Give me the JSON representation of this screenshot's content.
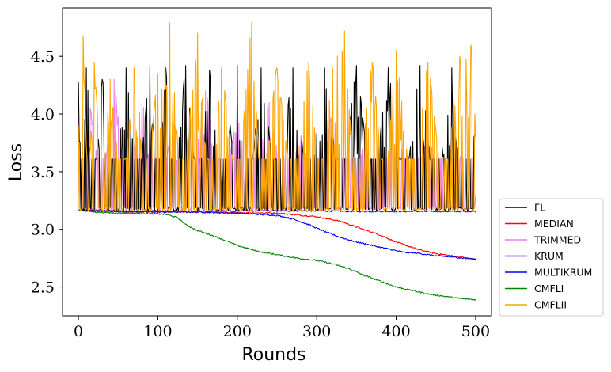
{
  "chart_data": {
    "type": "line",
    "title": "",
    "xlabel": "Rounds",
    "ylabel": "Loss",
    "xlim": [
      -20,
      520
    ],
    "ylim": [
      2.25,
      4.92
    ],
    "xticks": [
      0,
      100,
      200,
      300,
      400,
      500
    ],
    "yticks": [
      2.5,
      3.0,
      3.5,
      4.0,
      4.5
    ],
    "ytick_labels": [
      "2.5",
      "3.0",
      "3.5",
      "4.0",
      "4.5"
    ],
    "legend_position": "lower-right-outside",
    "series": [
      {
        "name": "FL",
        "color": "#000000",
        "style": "oscillating",
        "x": [
          0,
          5,
          10,
          20,
          30,
          45,
          60,
          75,
          90,
          100,
          110,
          120,
          135,
          150,
          165,
          180,
          200,
          215,
          230,
          250,
          270,
          290,
          310,
          330,
          350,
          370,
          390,
          410,
          430,
          450,
          470,
          490,
          500
        ],
        "y": [
          4.28,
          3.16,
          4.4,
          3.16,
          4.3,
          3.16,
          4.4,
          3.16,
          4.42,
          3.16,
          4.4,
          3.16,
          4.42,
          3.16,
          4.38,
          3.16,
          4.42,
          3.16,
          4.4,
          3.16,
          4.4,
          3.16,
          4.4,
          3.16,
          4.42,
          3.16,
          4.4,
          3.16,
          4.42,
          3.16,
          4.4,
          3.16,
          3.9
        ]
      },
      {
        "name": "MEDIAN",
        "color": "#ff0000",
        "style": "smooth",
        "x": [
          0,
          10,
          50,
          100,
          150,
          200,
          250,
          300,
          330,
          350,
          380,
          400,
          430,
          450,
          480,
          500
        ],
        "y": [
          3.17,
          3.16,
          3.155,
          3.15,
          3.15,
          3.145,
          3.14,
          3.11,
          3.07,
          3.02,
          2.95,
          2.89,
          2.82,
          2.79,
          2.76,
          2.74
        ]
      },
      {
        "name": "TRIMMED",
        "color": "#ee82ee",
        "style": "oscillating",
        "x": [
          0,
          5,
          15,
          30,
          45,
          60,
          80,
          100,
          120,
          140,
          160,
          180,
          200,
          220,
          240,
          260,
          280,
          300,
          320,
          340,
          360,
          380,
          400,
          420,
          440,
          460,
          480,
          500
        ],
        "y": [
          4.2,
          3.2,
          4.05,
          3.17,
          4.3,
          3.17,
          4.1,
          3.17,
          3.9,
          3.17,
          4.2,
          3.17,
          3.95,
          3.17,
          4.1,
          3.17,
          3.8,
          3.17,
          4.0,
          3.17,
          3.7,
          3.17,
          3.9,
          3.17,
          3.8,
          3.17,
          3.6,
          3.3
        ]
      },
      {
        "name": "KRUM",
        "color": "#5a00d0",
        "style": "smooth",
        "x": [
          0,
          50,
          100,
          150,
          200,
          250,
          300,
          350,
          400,
          450,
          500
        ],
        "y": [
          3.17,
          3.16,
          3.16,
          3.16,
          3.16,
          3.16,
          3.16,
          3.155,
          3.155,
          3.155,
          3.155
        ]
      },
      {
        "name": "MULTIKRUM",
        "color": "#0000ff",
        "style": "smooth",
        "x": [
          0,
          10,
          50,
          100,
          150,
          200,
          250,
          270,
          290,
          310,
          330,
          350,
          370,
          390,
          410,
          430,
          450,
          470,
          500
        ],
        "y": [
          3.17,
          3.16,
          3.155,
          3.15,
          3.15,
          3.14,
          3.12,
          3.09,
          3.04,
          2.98,
          2.93,
          2.89,
          2.86,
          2.83,
          2.8,
          2.79,
          2.77,
          2.76,
          2.74
        ]
      },
      {
        "name": "CMFLI",
        "color": "#008000",
        "style": "smooth",
        "x": [
          0,
          20,
          50,
          80,
          110,
          125,
          135,
          150,
          175,
          200,
          225,
          250,
          275,
          300,
          320,
          340,
          360,
          380,
          400,
          420,
          440,
          460,
          480,
          500
        ],
        "y": [
          3.17,
          3.15,
          3.14,
          3.14,
          3.13,
          3.1,
          3.04,
          2.99,
          2.93,
          2.86,
          2.81,
          2.78,
          2.75,
          2.73,
          2.7,
          2.66,
          2.6,
          2.55,
          2.5,
          2.47,
          2.44,
          2.42,
          2.4,
          2.39
        ]
      },
      {
        "name": "CMFLII",
        "color": "#ffa500",
        "style": "oscillating",
        "x": [
          0,
          3,
          6,
          12,
          20,
          30,
          40,
          55,
          70,
          85,
          100,
          115,
          130,
          150,
          165,
          180,
          200,
          218,
          230,
          250,
          270,
          290,
          305,
          320,
          335,
          350,
          370,
          385,
          400,
          420,
          440,
          460,
          480,
          495,
          500
        ],
        "y": [
          3.9,
          3.16,
          4.68,
          3.16,
          4.45,
          3.16,
          4.3,
          3.16,
          4.4,
          3.16,
          4.35,
          4.79,
          3.16,
          4.7,
          3.16,
          4.4,
          3.16,
          4.79,
          3.16,
          4.4,
          3.16,
          4.45,
          3.16,
          4.4,
          4.72,
          3.16,
          4.45,
          3.16,
          4.55,
          3.16,
          4.45,
          3.16,
          4.5,
          4.55,
          3.8
        ]
      }
    ]
  }
}
